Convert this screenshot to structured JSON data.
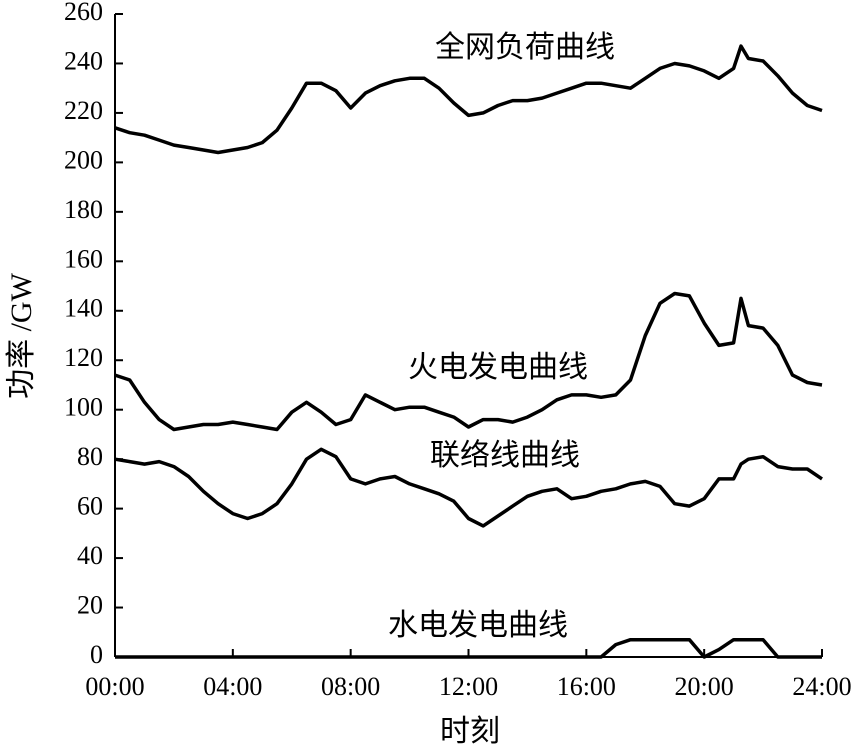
{
  "chart_data": {
    "type": "line",
    "x_label": "时刻",
    "y_label": "功率 /GW",
    "x": [
      0,
      0.5,
      1,
      1.5,
      2,
      2.5,
      3,
      3.5,
      4,
      4.5,
      5,
      5.5,
      6,
      6.5,
      7,
      7.5,
      8,
      8.5,
      9,
      9.5,
      10,
      10.5,
      11,
      11.5,
      12,
      12.5,
      13,
      13.5,
      14,
      14.5,
      15,
      15.5,
      16,
      16.5,
      17,
      17.5,
      18,
      18.5,
      19,
      19.5,
      20,
      20.5,
      21,
      21.25,
      21.5,
      22,
      22.5,
      23,
      23.5,
      24
    ],
    "series": [
      {
        "name": "全网负荷曲线",
        "color": "#000000",
        "values": [
          214,
          212,
          211,
          209,
          207,
          206,
          205,
          204,
          205,
          206,
          208,
          213,
          222,
          232,
          232,
          229,
          222,
          228,
          231,
          233,
          234,
          234,
          230,
          224,
          219,
          220,
          223,
          225,
          225,
          226,
          228,
          230,
          232,
          232,
          231,
          230,
          234,
          238,
          240,
          239,
          237,
          234,
          238,
          247,
          242,
          241,
          235,
          228,
          223,
          221
        ]
      },
      {
        "name": "火电发电曲线",
        "color": "#000000",
        "values": [
          114,
          112,
          103,
          96,
          92,
          93,
          94,
          94,
          95,
          94,
          93,
          92,
          99,
          103,
          99,
          94,
          96,
          106,
          103,
          100,
          101,
          101,
          99,
          97,
          93,
          96,
          96,
          95,
          97,
          100,
          104,
          106,
          106,
          105,
          106,
          112,
          130,
          143,
          147,
          146,
          135,
          126,
          127,
          145,
          134,
          133,
          126,
          114,
          111,
          110
        ]
      },
      {
        "name": "联络线曲线",
        "color": "#000000",
        "values": [
          80,
          79,
          78,
          79,
          77,
          73,
          67,
          62,
          58,
          56,
          58,
          62,
          70,
          80,
          84,
          81,
          72,
          70,
          72,
          73,
          70,
          68,
          66,
          63,
          56,
          53,
          57,
          61,
          65,
          67,
          68,
          64,
          65,
          67,
          68,
          70,
          71,
          69,
          62,
          61,
          64,
          72,
          72,
          78,
          80,
          81,
          77,
          76,
          76,
          72
        ]
      },
      {
        "name": "水电发电曲线",
        "color": "#000000",
        "values": [
          0,
          0,
          0,
          0,
          0,
          0,
          0,
          0,
          0,
          0,
          0,
          0,
          0,
          0,
          0,
          0,
          0,
          0,
          0,
          0,
          0,
          0,
          0,
          0,
          0,
          0,
          0,
          0,
          0,
          0,
          0,
          0,
          0,
          0,
          5,
          7,
          7,
          7,
          7,
          7,
          0,
          3,
          7,
          7,
          7,
          7,
          0,
          0,
          0,
          0
        ]
      }
    ],
    "xlim": [
      0,
      24
    ],
    "xticks": [
      {
        "value": 0,
        "label": "00:00"
      },
      {
        "value": 4,
        "label": "04:00"
      },
      {
        "value": 8,
        "label": "08:00"
      },
      {
        "value": 12,
        "label": "12:00"
      },
      {
        "value": 16,
        "label": "16:00"
      },
      {
        "value": 20,
        "label": "20:00"
      },
      {
        "value": 24,
        "label": "24:00"
      }
    ],
    "ylim": [
      0,
      260
    ],
    "yticks": [
      0,
      20,
      40,
      60,
      80,
      100,
      120,
      140,
      160,
      180,
      200,
      220,
      240,
      260
    ]
  }
}
